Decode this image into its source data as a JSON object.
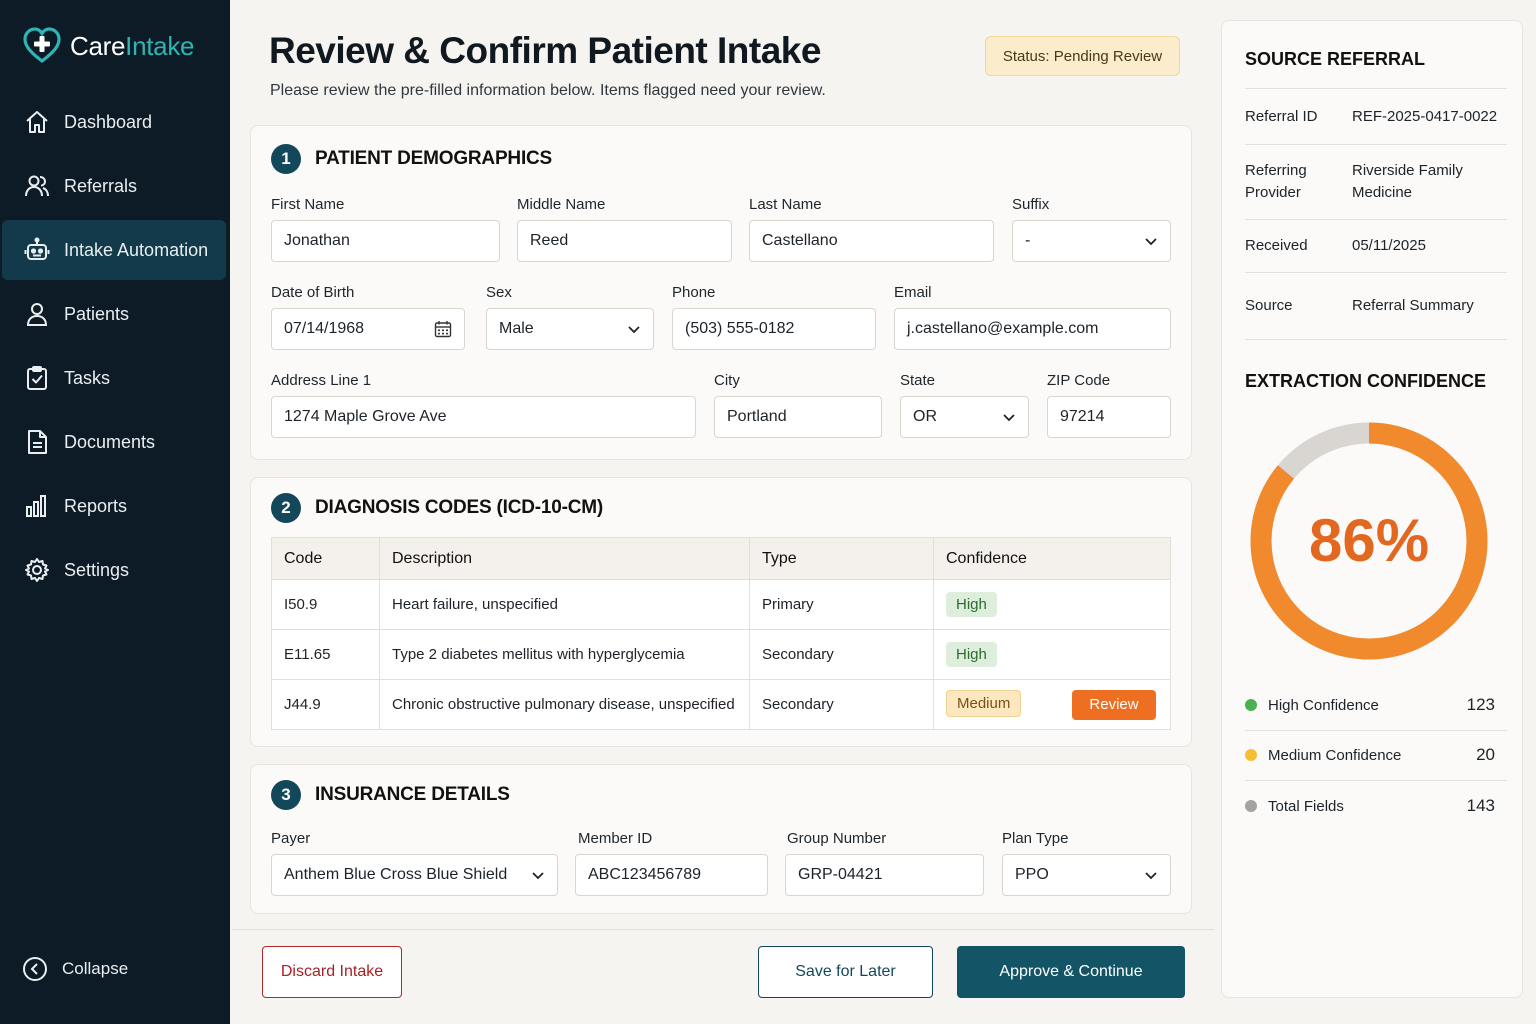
{
  "app": {
    "name_care": "Care",
    "name_intake": "Intake"
  },
  "sidebar": {
    "items": [
      {
        "label": "Dashboard",
        "icon": "home-icon"
      },
      {
        "label": "Referrals",
        "icon": "users-icon"
      },
      {
        "label": "Intake Automation",
        "icon": "robot-icon",
        "active": true
      },
      {
        "label": "Patients",
        "icon": "user-icon"
      },
      {
        "label": "Tasks",
        "icon": "clipboard-check-icon"
      },
      {
        "label": "Documents",
        "icon": "document-icon"
      },
      {
        "label": "Reports",
        "icon": "bar-chart-icon"
      },
      {
        "label": "Settings",
        "icon": "gear-icon"
      }
    ],
    "collapse_label": "Collapse"
  },
  "header": {
    "title": "Review & Confirm Patient Intake",
    "subtitle": "Please review the pre-filled information below. Items flagged need your review.",
    "status": "Status: Pending Review"
  },
  "demographics": {
    "number": "1",
    "title": "PATIENT DEMOGRAPHICS",
    "first_name": {
      "label": "First Name",
      "value": "Jonathan"
    },
    "middle_name": {
      "label": "Middle Name",
      "value": "Reed"
    },
    "last_name": {
      "label": "Last Name",
      "value": "Castellano"
    },
    "suffix": {
      "label": "Suffix",
      "value": "-"
    },
    "dob": {
      "label": "Date of Birth",
      "value": "07/14/1968"
    },
    "sex": {
      "label": "Sex",
      "value": "Male"
    },
    "phone": {
      "label": "Phone",
      "value": "(503) 555-0182"
    },
    "email": {
      "label": "Email",
      "value": "j.castellano@example.com"
    },
    "address1": {
      "label": "Address Line 1",
      "value": "1274 Maple Grove Ave"
    },
    "city": {
      "label": "City",
      "value": "Portland"
    },
    "state": {
      "label": "State",
      "value": "OR"
    },
    "zip": {
      "label": "ZIP Code",
      "value": "97214"
    }
  },
  "diagnosis": {
    "number": "2",
    "title": "DIAGNOSIS CODES (ICD-10-CM)",
    "columns": [
      "Code",
      "Description",
      "Type",
      "Confidence"
    ],
    "rows": [
      {
        "code": "I50.9",
        "description": "Heart failure, unspecified",
        "type": "Primary",
        "confidence": "High"
      },
      {
        "code": "E11.65",
        "description": "Type 2 diabetes mellitus with hyperglycemia",
        "type": "Secondary",
        "confidence": "High"
      },
      {
        "code": "J44.9",
        "description": "Chronic obstructive pulmonary disease, unspecified",
        "type": "Secondary",
        "confidence": "Medium",
        "action": "Review"
      }
    ]
  },
  "insurance": {
    "number": "3",
    "title": "INSURANCE DETAILS",
    "payer": {
      "label": "Payer",
      "value": "Anthem Blue Cross Blue Shield"
    },
    "member_id": {
      "label": "Member ID",
      "value": "ABC123456789"
    },
    "group_number": {
      "label": "Group Number",
      "value": "GRP-04421"
    },
    "plan_type": {
      "label": "Plan Type",
      "value": "PPO"
    }
  },
  "footer": {
    "discard": "Discard Intake",
    "save": "Save for Later",
    "approve": "Approve & Continue"
  },
  "source_referral": {
    "title": "SOURCE REFERRAL",
    "referral_id": {
      "label": "Referral ID",
      "value": "REF-2025-0417-0022"
    },
    "referring_provider": {
      "label": "Referring Provider",
      "value": "Riverside Family Medicine"
    },
    "received": {
      "label": "Received",
      "value": "05/11/2025"
    },
    "source": {
      "label": "Source",
      "value": "Referral Summary"
    }
  },
  "extraction": {
    "title": "EXTRACTION CONFIDENCE",
    "percent_label": "86%",
    "percent": 86,
    "colors": {
      "accent": "#f08a2c",
      "track": "#d9d6d2",
      "high": "#4caf50",
      "medium": "#f5bf33",
      "total": "#a3a3a3"
    },
    "legend": [
      {
        "label": "High Confidence",
        "count": "123"
      },
      {
        "label": "Medium Confidence",
        "count": "20"
      },
      {
        "label": "Total Fields",
        "count": "143"
      }
    ]
  }
}
